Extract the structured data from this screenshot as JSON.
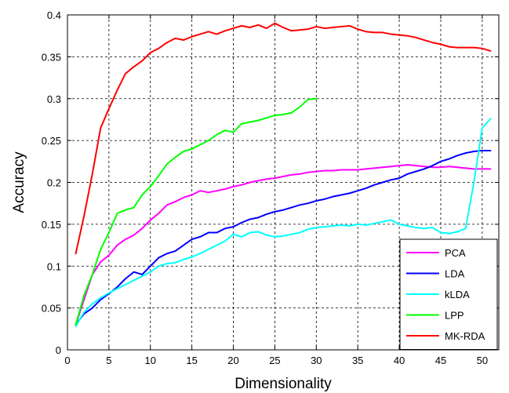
{
  "chart_data": {
    "type": "line",
    "title": "",
    "xlabel": "Dimensionality",
    "ylabel": "Accuracy",
    "xlim": [
      0,
      52
    ],
    "ylim": [
      0,
      0.4
    ],
    "xticks": [
      0,
      5,
      10,
      15,
      20,
      25,
      30,
      35,
      40,
      45,
      50
    ],
    "xtick_labels": [
      "0",
      "5",
      "10",
      "15",
      "20",
      "25",
      "30",
      "35",
      "40",
      "45",
      "50"
    ],
    "yticks": [
      0,
      0.05,
      0.1,
      0.15,
      0.2,
      0.25,
      0.3,
      0.35,
      0.4
    ],
    "ytick_labels": [
      "0",
      "0.05",
      "0.1",
      "0.15",
      "0.2",
      "0.25",
      "0.3",
      "0.35",
      "0.4"
    ],
    "grid": true,
    "legend_position": "bottom-right",
    "series": [
      {
        "name": "PCA",
        "color": "#ff00ff",
        "x": [
          1,
          2,
          3,
          4,
          5,
          6,
          7,
          8,
          9,
          10,
          11,
          12,
          13,
          14,
          15,
          16,
          17,
          18,
          19,
          20,
          21,
          22,
          23,
          24,
          25,
          26,
          27,
          28,
          29,
          30,
          31,
          32,
          33,
          34,
          35,
          36,
          37,
          38,
          39,
          40,
          41,
          42,
          43,
          44,
          45,
          46,
          47,
          48,
          49,
          50,
          51
        ],
        "y": [
          0.03,
          0.06,
          0.09,
          0.105,
          0.113,
          0.125,
          0.132,
          0.137,
          0.145,
          0.155,
          0.163,
          0.173,
          0.177,
          0.182,
          0.185,
          0.19,
          0.188,
          0.19,
          0.192,
          0.195,
          0.197,
          0.2,
          0.202,
          0.204,
          0.205,
          0.207,
          0.209,
          0.21,
          0.212,
          0.213,
          0.214,
          0.214,
          0.215,
          0.215,
          0.215,
          0.216,
          0.217,
          0.218,
          0.219,
          0.22,
          0.221,
          0.22,
          0.219,
          0.218,
          0.218,
          0.219,
          0.218,
          0.217,
          0.216,
          0.216,
          0.216
        ]
      },
      {
        "name": "LDA",
        "color": "#0000ff",
        "x": [
          1,
          2,
          3,
          4,
          5,
          6,
          7,
          8,
          9,
          10,
          11,
          12,
          13,
          14,
          15,
          16,
          17,
          18,
          19,
          20,
          21,
          22,
          23,
          24,
          25,
          26,
          27,
          28,
          29,
          30,
          31,
          32,
          33,
          34,
          35,
          36,
          37,
          38,
          39,
          40,
          41,
          42,
          43,
          44,
          45,
          46,
          47,
          48,
          49,
          50,
          51
        ],
        "y": [
          0.03,
          0.043,
          0.05,
          0.06,
          0.067,
          0.075,
          0.085,
          0.093,
          0.09,
          0.1,
          0.11,
          0.115,
          0.118,
          0.125,
          0.132,
          0.135,
          0.14,
          0.14,
          0.145,
          0.147,
          0.152,
          0.156,
          0.158,
          0.162,
          0.165,
          0.167,
          0.17,
          0.173,
          0.175,
          0.178,
          0.18,
          0.183,
          0.185,
          0.187,
          0.19,
          0.193,
          0.197,
          0.2,
          0.203,
          0.205,
          0.21,
          0.213,
          0.216,
          0.22,
          0.225,
          0.228,
          0.232,
          0.235,
          0.237,
          0.238,
          0.238
        ]
      },
      {
        "name": "kLDA",
        "color": "#00ffff",
        "x": [
          1,
          2,
          3,
          4,
          5,
          6,
          7,
          8,
          9,
          10,
          11,
          12,
          13,
          14,
          15,
          16,
          17,
          18,
          19,
          20,
          21,
          22,
          23,
          24,
          25,
          26,
          27,
          28,
          29,
          30,
          31,
          32,
          33,
          34,
          35,
          36,
          37,
          38,
          39,
          40,
          41,
          42,
          43,
          44,
          45,
          46,
          47,
          48,
          49,
          50,
          51
        ],
        "y": [
          0.028,
          0.045,
          0.055,
          0.062,
          0.068,
          0.073,
          0.078,
          0.083,
          0.088,
          0.093,
          0.1,
          0.103,
          0.104,
          0.108,
          0.111,
          0.115,
          0.12,
          0.125,
          0.13,
          0.138,
          0.135,
          0.14,
          0.141,
          0.137,
          0.135,
          0.136,
          0.138,
          0.14,
          0.144,
          0.146,
          0.147,
          0.148,
          0.149,
          0.148,
          0.15,
          0.149,
          0.151,
          0.153,
          0.155,
          0.15,
          0.148,
          0.146,
          0.145,
          0.146,
          0.14,
          0.139,
          0.141,
          0.145,
          0.2,
          0.265,
          0.276
        ]
      },
      {
        "name": "LPP",
        "color": "#00ff00",
        "x": [
          1,
          2,
          3,
          4,
          5,
          6,
          7,
          8,
          9,
          10,
          11,
          12,
          13,
          14,
          15,
          16,
          17,
          18,
          19,
          20,
          21,
          22,
          23,
          24,
          25,
          26,
          27,
          28,
          29,
          30
        ],
        "y": [
          0.03,
          0.065,
          0.09,
          0.12,
          0.14,
          0.163,
          0.167,
          0.17,
          0.185,
          0.195,
          0.208,
          0.222,
          0.23,
          0.237,
          0.24,
          0.245,
          0.25,
          0.257,
          0.262,
          0.26,
          0.27,
          0.272,
          0.274,
          0.277,
          0.28,
          0.281,
          0.283,
          0.29,
          0.299,
          0.3
        ]
      },
      {
        "name": "MK-RDA",
        "color": "#ff0000",
        "x": [
          1,
          2,
          3,
          4,
          5,
          6,
          7,
          8,
          9,
          10,
          11,
          12,
          13,
          14,
          15,
          16,
          17,
          18,
          19,
          20,
          21,
          22,
          23,
          24,
          25,
          26,
          27,
          28,
          29,
          30,
          31,
          32,
          33,
          34,
          35,
          36,
          37,
          38,
          39,
          40,
          41,
          42,
          43,
          44,
          45,
          46,
          47,
          48,
          49,
          50,
          51
        ],
        "y": [
          0.115,
          0.16,
          0.21,
          0.265,
          0.288,
          0.31,
          0.33,
          0.338,
          0.345,
          0.355,
          0.36,
          0.367,
          0.372,
          0.37,
          0.374,
          0.377,
          0.38,
          0.377,
          0.381,
          0.384,
          0.387,
          0.385,
          0.388,
          0.384,
          0.39,
          0.385,
          0.381,
          0.382,
          0.383,
          0.386,
          0.384,
          0.385,
          0.386,
          0.387,
          0.383,
          0.38,
          0.379,
          0.379,
          0.377,
          0.376,
          0.375,
          0.373,
          0.37,
          0.367,
          0.365,
          0.362,
          0.361,
          0.361,
          0.361,
          0.36,
          0.357
        ]
      }
    ]
  }
}
